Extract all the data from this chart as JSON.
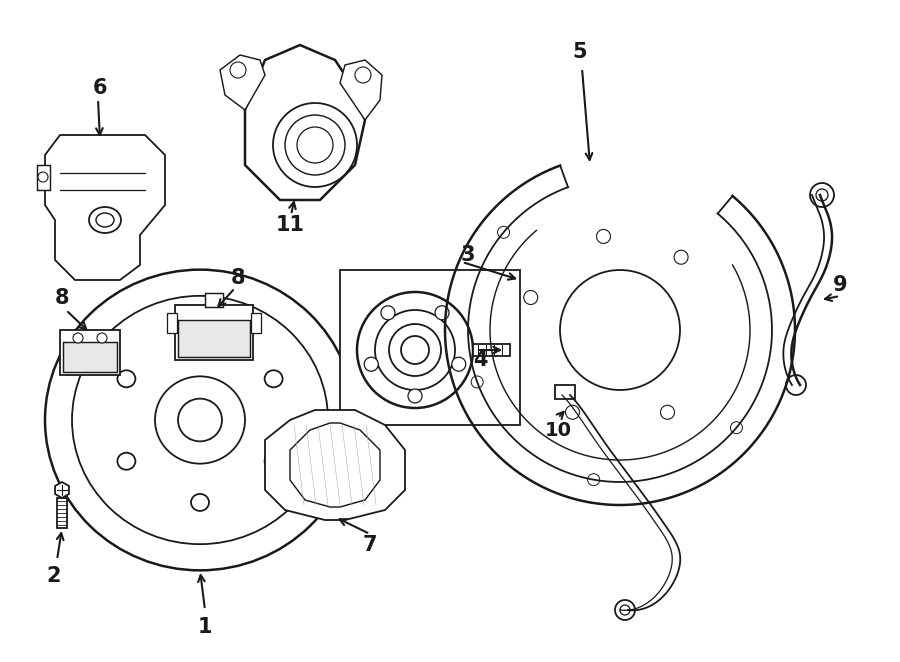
{
  "bg_color": "#ffffff",
  "line_color": "#1a1a1a",
  "fig_width": 9.0,
  "fig_height": 6.62,
  "dpi": 100
}
